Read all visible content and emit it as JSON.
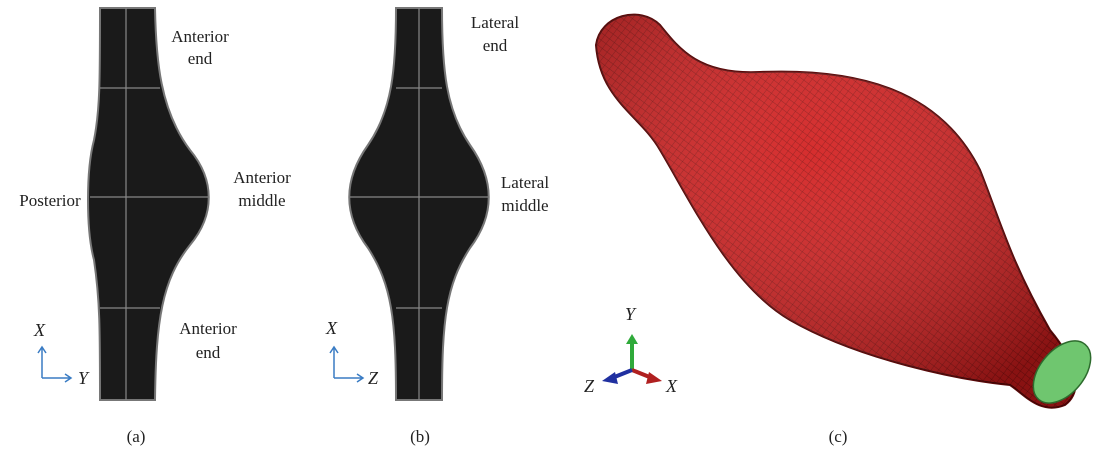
{
  "panels": [
    {
      "caption": "(a)",
      "labels": [
        [
          "Anterior",
          "end"
        ],
        [
          "Posterior"
        ],
        [
          "Anterior",
          "middle"
        ],
        [
          "Anterior",
          "end"
        ]
      ],
      "axes": [
        "X",
        "Y"
      ]
    },
    {
      "caption": "(b)",
      "labels": [
        [
          "Lateral",
          "end"
        ],
        [
          "Lateral",
          "middle"
        ]
      ],
      "axes": [
        "X",
        "Z"
      ]
    },
    {
      "caption": "(c)",
      "axes": [
        "Y",
        "Z",
        "X"
      ]
    }
  ]
}
